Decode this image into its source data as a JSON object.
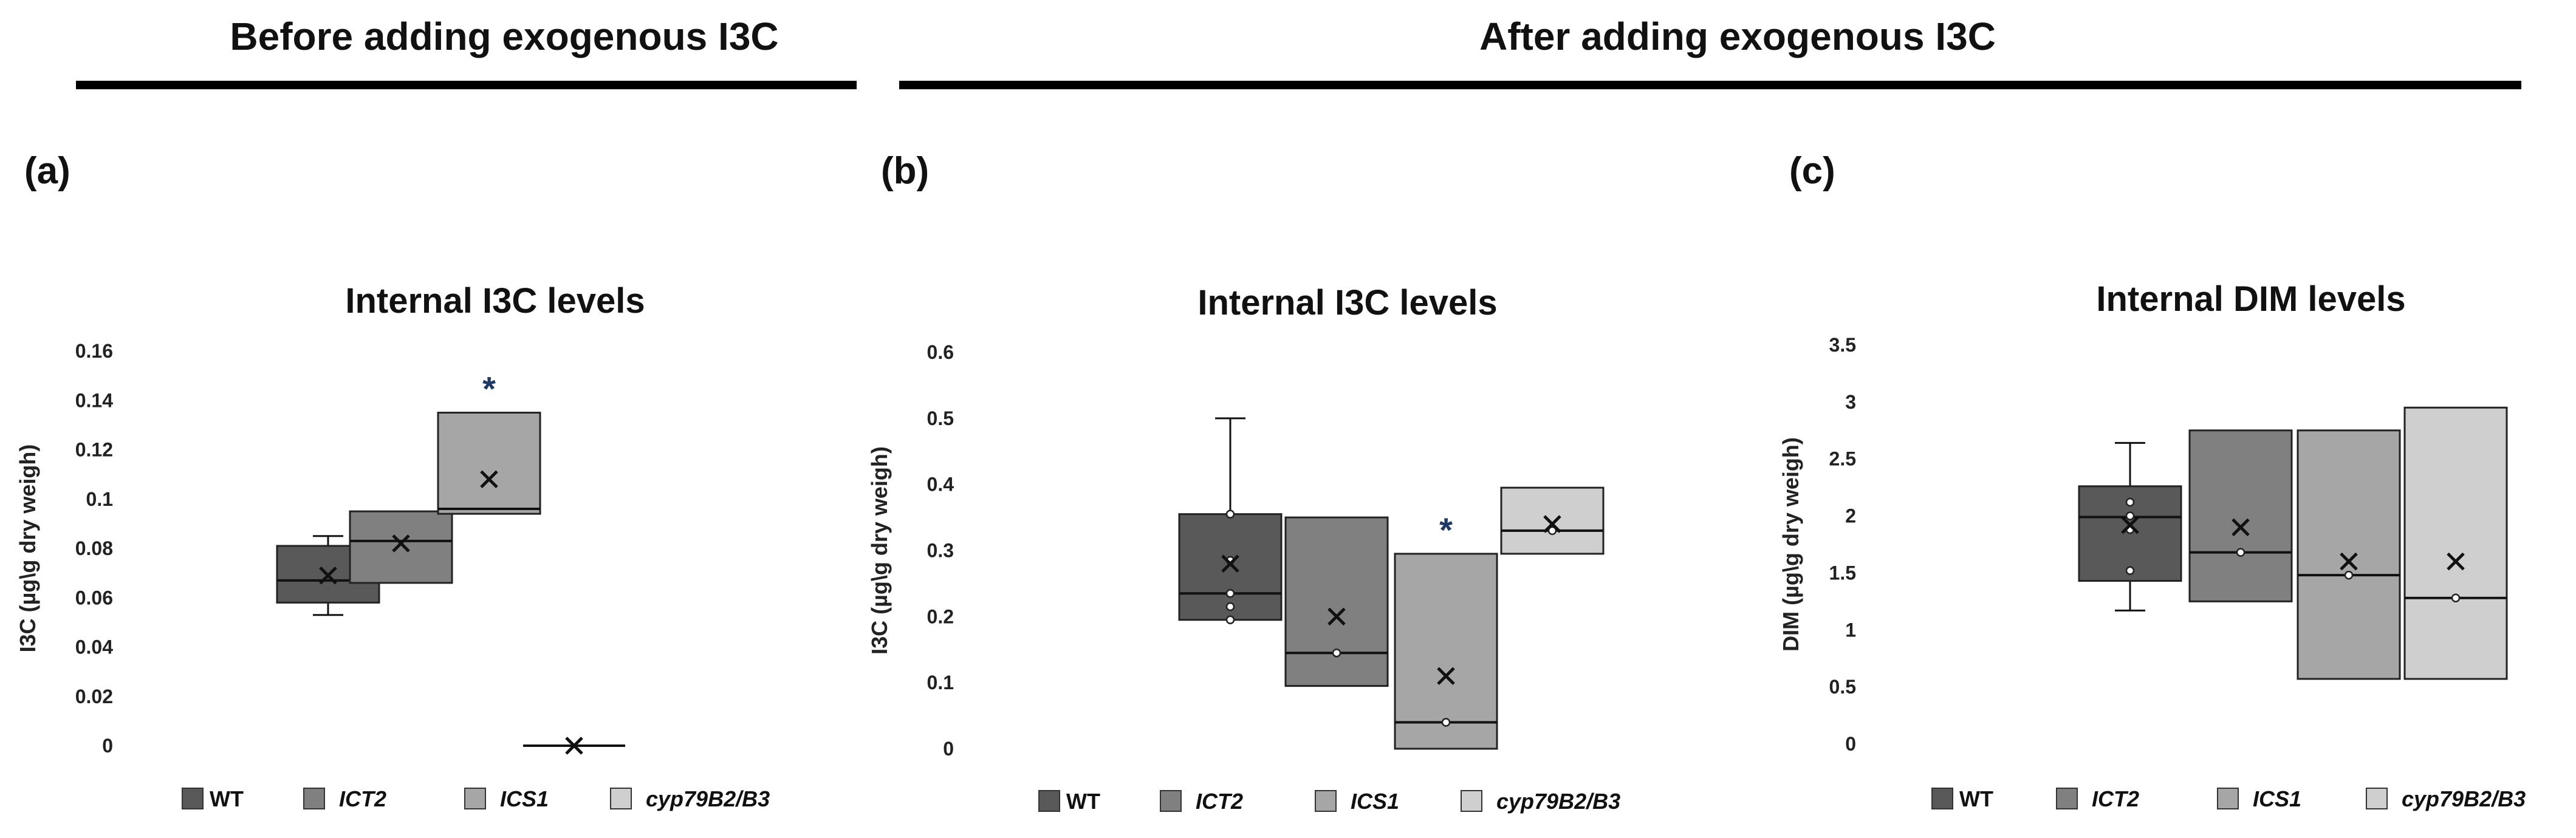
{
  "header": {
    "before": "Before adding exogenous I3C",
    "after": "After adding exogenous I3C"
  },
  "colors": {
    "WT": "#595959",
    "ICT2": "#808080",
    "ICS1": "#a6a6a6",
    "cyp79B2/B3": "#cfcfcf"
  },
  "legend": [
    {
      "key": "WT",
      "label": "WT",
      "italic": false
    },
    {
      "key": "ICT2",
      "label": "ICT2",
      "italic": true
    },
    {
      "key": "ICS1",
      "label": "ICS1",
      "italic": true
    },
    {
      "key": "cyp79B2/B3",
      "label": "cyp79B2/B3",
      "italic": true
    }
  ],
  "chart_data": [
    {
      "panel": "(a)",
      "type": "boxplot",
      "title": "Internal I3C levels",
      "ylabel": "I3C (µg\\g dry weigh)",
      "ylim": [
        0,
        0.16
      ],
      "ticks": [
        0,
        0.02,
        0.04,
        0.06,
        0.08,
        0.1,
        0.12,
        0.14,
        0.16
      ],
      "tick_labels": [
        "0",
        "0.02",
        "0.04",
        "0.06",
        "0.08",
        "0.1",
        "0.12",
        "0.14",
        "0.16"
      ],
      "categories": [
        "WT",
        "ICT2",
        "ICS1",
        "cyp79B2/B3"
      ],
      "boxes": [
        {
          "min": 0.053,
          "q1": 0.058,
          "median": 0.067,
          "q3": 0.081,
          "max": 0.085,
          "mean": 0.069,
          "points": [],
          "sig": ""
        },
        {
          "min": 0.066,
          "q1": 0.066,
          "median": 0.083,
          "q3": 0.095,
          "max": 0.095,
          "mean": 0.082,
          "points": [],
          "sig": ""
        },
        {
          "min": 0.094,
          "q1": 0.094,
          "median": 0.096,
          "q3": 0.135,
          "max": 0.135,
          "mean": 0.108,
          "points": [],
          "sig": "*"
        },
        {
          "min": 0,
          "q1": 0,
          "median": 0,
          "q3": 0,
          "max": 0,
          "mean": 0,
          "points": [],
          "sig": ""
        }
      ]
    },
    {
      "panel": "(b)",
      "type": "boxplot",
      "title": "Internal I3C levels",
      "ylabel": "I3C (µg\\g dry weigh)",
      "ylim": [
        0,
        0.6
      ],
      "ticks": [
        0,
        0.1,
        0.2,
        0.3,
        0.4,
        0.5,
        0.6
      ],
      "tick_labels": [
        "0",
        "0.1",
        "0.2",
        "0.3",
        "0.4",
        "0.5",
        "0.6"
      ],
      "categories": [
        "WT",
        "ICT2",
        "ICS1",
        "cyp79B2/B3"
      ],
      "boxes": [
        {
          "min": 0.195,
          "q1": 0.195,
          "median": 0.235,
          "q3": 0.355,
          "max": 0.5,
          "mean": 0.28,
          "points": [
            0.355,
            0.285,
            0.235,
            0.215,
            0.195
          ],
          "sig": ""
        },
        {
          "min": 0.095,
          "q1": 0.095,
          "median": 0.145,
          "q3": 0.35,
          "max": 0.35,
          "mean": 0.2,
          "points": [
            0.145
          ],
          "sig": ""
        },
        {
          "min": 0,
          "q1": 0,
          "median": 0.04,
          "q3": 0.295,
          "max": 0.295,
          "mean": 0.11,
          "points": [
            0.04
          ],
          "sig": "*"
        },
        {
          "min": 0.295,
          "q1": 0.295,
          "median": 0.33,
          "q3": 0.395,
          "max": 0.395,
          "mean": 0.34,
          "points": [
            0.33
          ],
          "sig": ""
        }
      ]
    },
    {
      "panel": "(c)",
      "type": "boxplot",
      "title": "Internal DIM levels",
      "ylabel": "DIM (µg\\g dry weigh)",
      "ylim": [
        0,
        3.5
      ],
      "ticks": [
        0,
        0.5,
        1,
        1.5,
        2,
        2.5,
        3,
        3.5
      ],
      "tick_labels": [
        "0",
        "0.5",
        "1",
        "1.5",
        "2",
        "2.5",
        "3",
        "3.5"
      ],
      "categories": [
        "WT",
        "ICT2",
        "ICS1",
        "cyp79B2/B3"
      ],
      "boxes": [
        {
          "min": 1.17,
          "q1": 1.43,
          "median": 1.99,
          "q3": 2.26,
          "max": 2.64,
          "mean": 1.92,
          "points": [
            2.12,
            2.0,
            1.88,
            1.52
          ],
          "sig": ""
        },
        {
          "min": 1.25,
          "q1": 1.25,
          "median": 1.68,
          "q3": 2.75,
          "max": 2.75,
          "mean": 1.9,
          "points": [
            1.68
          ],
          "sig": ""
        },
        {
          "min": 0.57,
          "q1": 0.57,
          "median": 1.48,
          "q3": 2.75,
          "max": 2.75,
          "mean": 1.6,
          "points": [
            1.48
          ],
          "sig": ""
        },
        {
          "min": 0.57,
          "q1": 0.57,
          "median": 1.28,
          "q3": 2.95,
          "max": 2.95,
          "mean": 1.6,
          "points": [
            1.28
          ],
          "sig": ""
        }
      ]
    }
  ]
}
